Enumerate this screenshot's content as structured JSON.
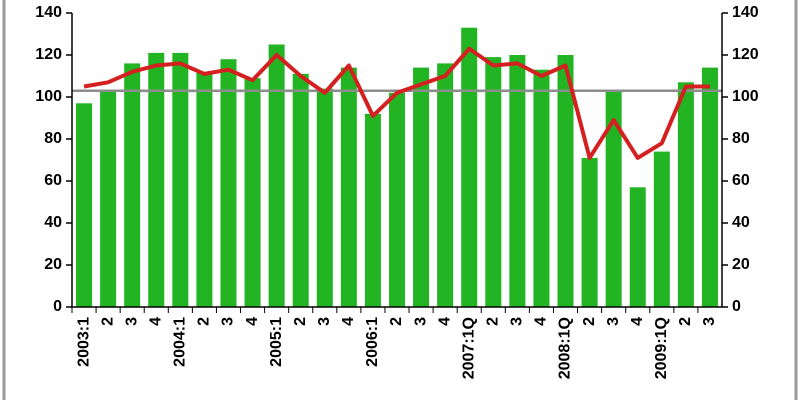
{
  "chart_data": {
    "type": "bar",
    "categories": [
      "2003:1",
      "2",
      "3",
      "4",
      "2004:1",
      "2",
      "3",
      "4",
      "2005:1",
      "2",
      "3",
      "4",
      "2006:1",
      "2",
      "3",
      "4",
      "2007:1Q",
      "2",
      "3",
      "4",
      "2008:1Q",
      "2",
      "3",
      "4",
      "2009:1Q",
      "2",
      "3"
    ],
    "series": [
      {
        "type": "bar",
        "color": "#22b422",
        "values": [
          97,
          103,
          116,
          121,
          121,
          112,
          118,
          109,
          125,
          111,
          104,
          114,
          92,
          102,
          114,
          116,
          133,
          119,
          120,
          113,
          120,
          71,
          103,
          57,
          74,
          107,
          114
        ]
      },
      {
        "type": "line",
        "color": "#d42020",
        "values": [
          105,
          107,
          112,
          115,
          116,
          111,
          113,
          108,
          120,
          110,
          102,
          115,
          91,
          102,
          106,
          110,
          123,
          115,
          116,
          110,
          115,
          71,
          89,
          71,
          78,
          105,
          105
        ]
      }
    ],
    "reference_line": {
      "value": 103,
      "color": "#8c8c8c"
    },
    "ylim": [
      0,
      140
    ],
    "yticks": [
      0,
      20,
      40,
      60,
      80,
      100,
      120,
      140
    ],
    "y2lim": [
      0,
      140
    ],
    "y2ticks": [
      0,
      20,
      40,
      60,
      80,
      100,
      120,
      140
    ]
  }
}
